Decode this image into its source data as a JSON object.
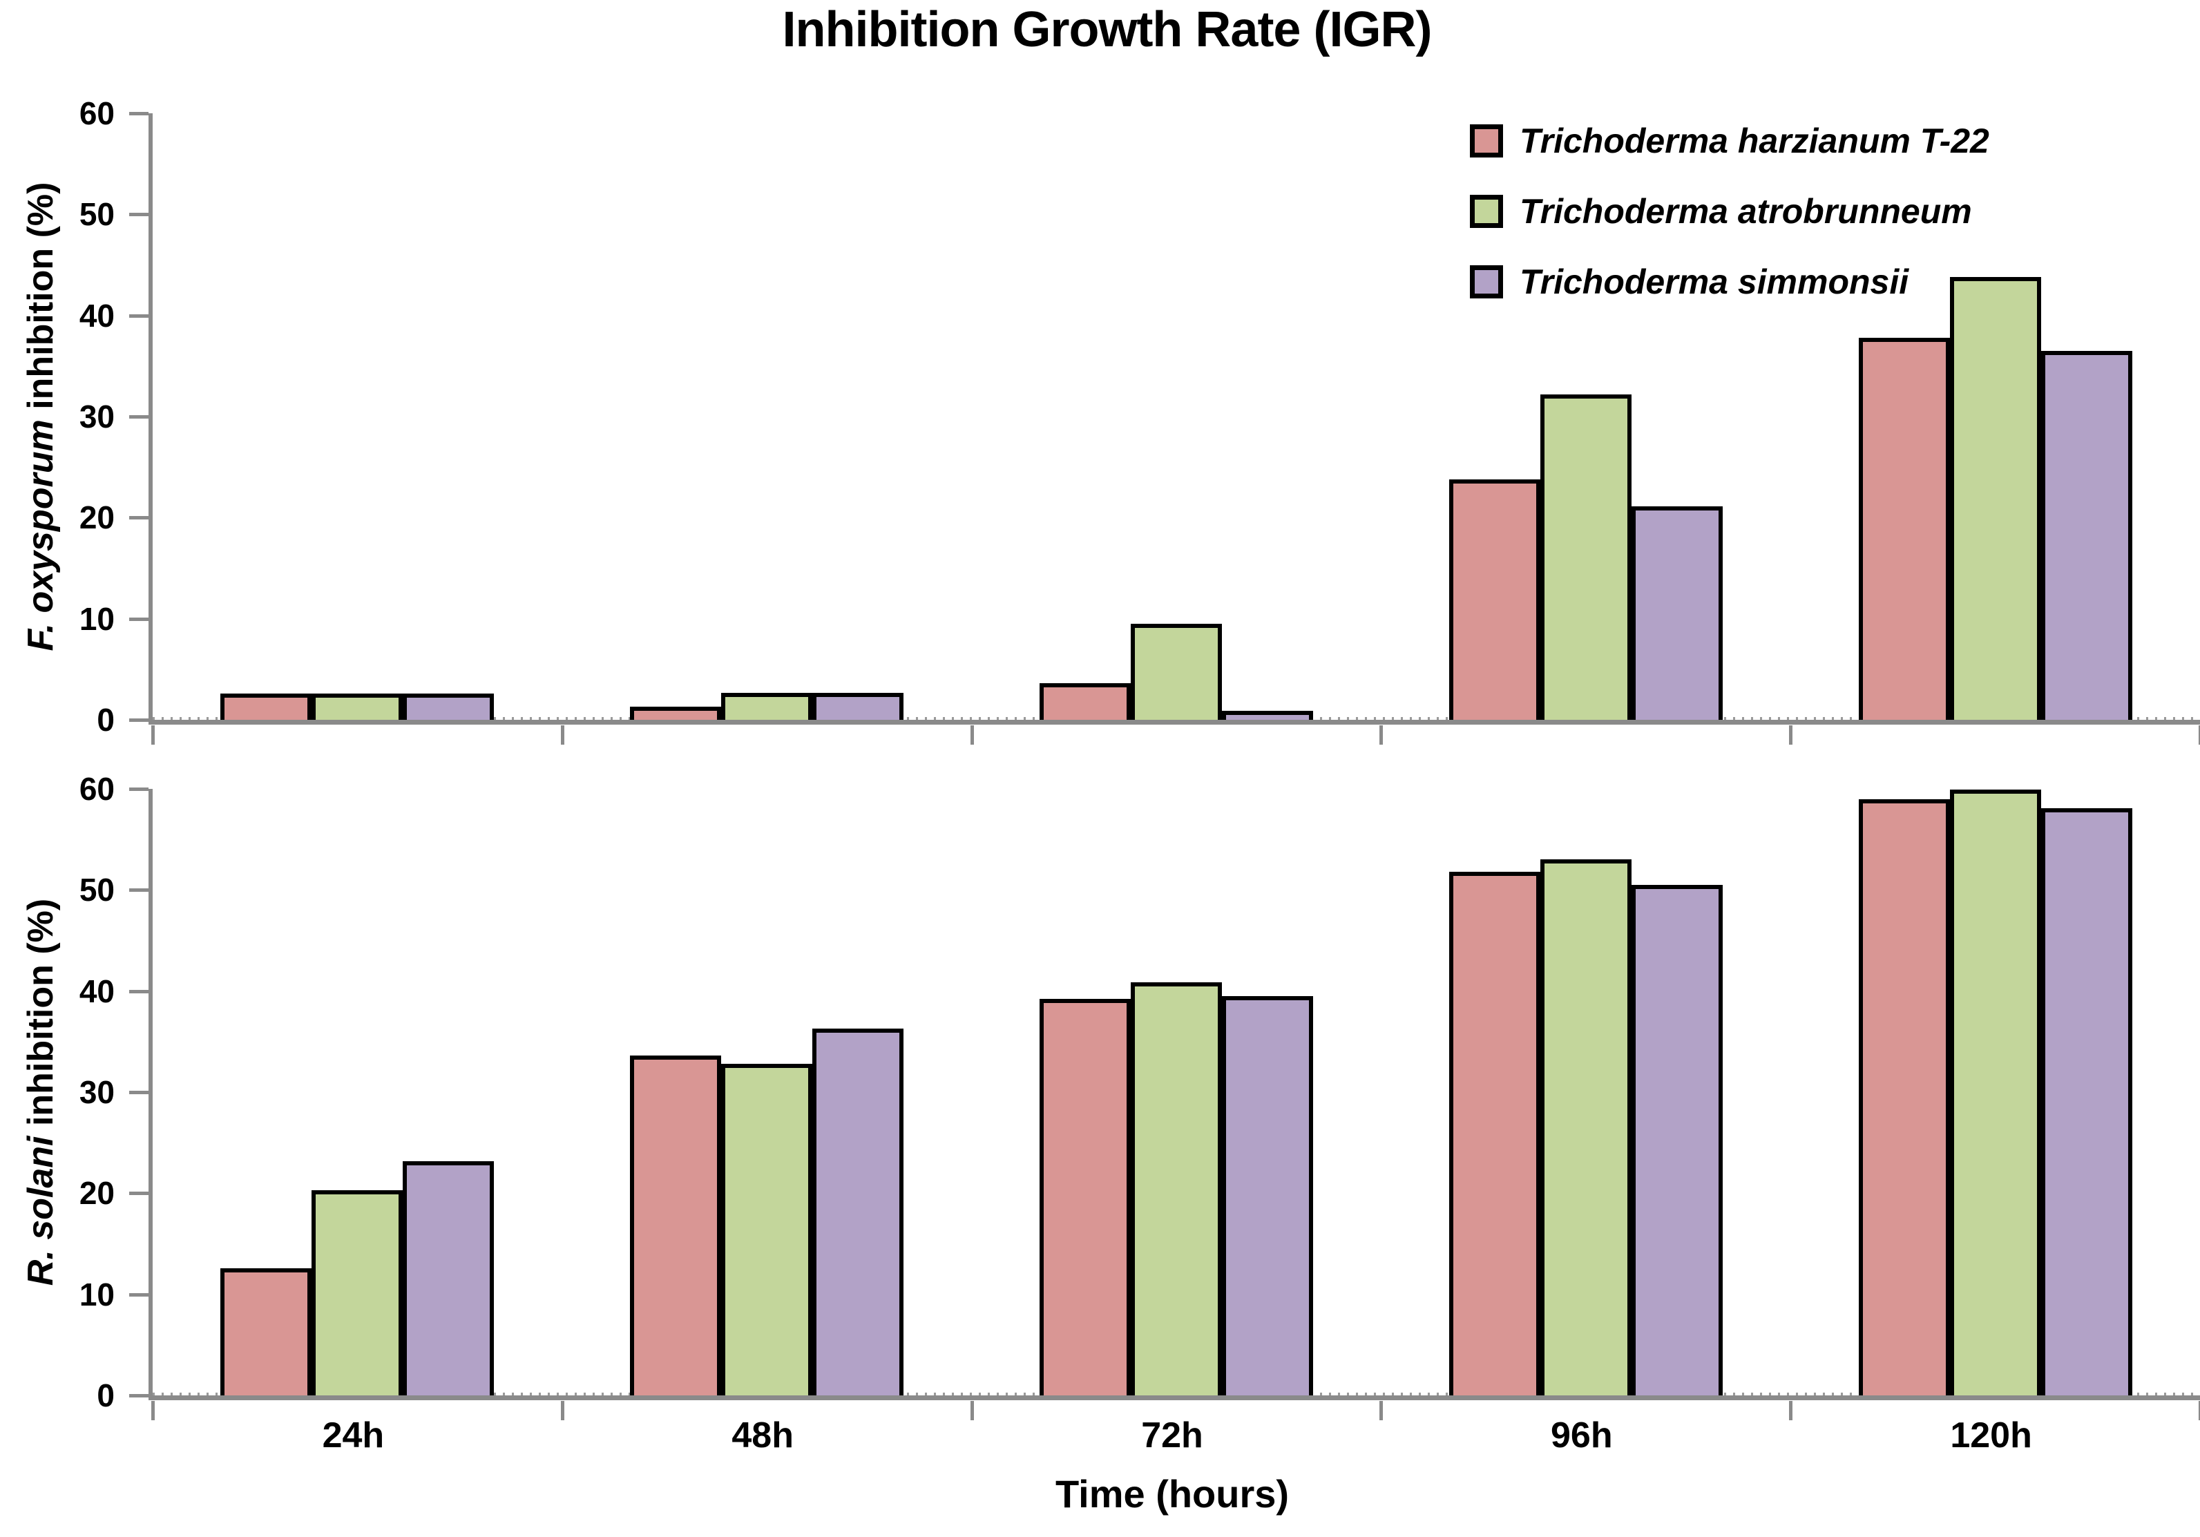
{
  "title": "Inhibition Growth Rate (IGR)",
  "x_axis": {
    "title": "Time (hours)",
    "categories": [
      "24h",
      "48h",
      "72h",
      "96h",
      "120h"
    ]
  },
  "legend": {
    "position": "top-right-inside",
    "items": [
      {
        "label": "Trichoderma harzianum T-22",
        "color": "#D99694"
      },
      {
        "label": "Trichoderma atrobrunneum",
        "color": "#C3D69B"
      },
      {
        "label": "Trichoderma simmonsii",
        "color": "#B2A2C7"
      }
    ]
  },
  "styles": {
    "series_pink": "#D99694",
    "series_green": "#C3D69B",
    "series_purple": "#B2A2C7",
    "bar_border": "#000000",
    "axis_color": "#8A8A8A",
    "text_color": "#000000",
    "background": "#FFFFFF"
  },
  "chart_data": [
    {
      "type": "bar",
      "panel": "top",
      "ylabel_italic": "F. oxysporum",
      "ylabel_rest": " inhibition (%)",
      "ylim": [
        0,
        60
      ],
      "yticks": [
        0,
        10,
        20,
        30,
        40,
        50,
        60
      ],
      "grid": false,
      "categories": [
        "24h",
        "48h",
        "72h",
        "96h",
        "120h"
      ],
      "series": [
        {
          "name": "Trichoderma harzianum T-22",
          "color": "#D99694",
          "values": [
            2.6,
            1.3,
            3.6,
            23.8,
            37.8
          ]
        },
        {
          "name": "Trichoderma atrobrunneum",
          "color": "#C3D69B",
          "values": [
            2.6,
            2.7,
            9.5,
            32.2,
            43.8
          ]
        },
        {
          "name": "Trichoderma simmonsii",
          "color": "#B2A2C7",
          "values": [
            2.6,
            2.7,
            0.9,
            21.1,
            36.5
          ]
        }
      ]
    },
    {
      "type": "bar",
      "panel": "bottom",
      "ylabel_italic": "R. solani",
      "ylabel_rest": " inhibition (%)",
      "ylim": [
        0,
        60
      ],
      "yticks": [
        0,
        10,
        20,
        30,
        40,
        50,
        60
      ],
      "grid": false,
      "categories": [
        "24h",
        "48h",
        "72h",
        "96h",
        "120h"
      ],
      "series": [
        {
          "name": "Trichoderma harzianum T-22",
          "color": "#D99694",
          "values": [
            12.6,
            33.6,
            39.2,
            51.8,
            59.0
          ]
        },
        {
          "name": "Trichoderma atrobrunneum",
          "color": "#C3D69B",
          "values": [
            20.3,
            32.8,
            40.9,
            53.0,
            59.9
          ]
        },
        {
          "name": "Trichoderma simmonsii",
          "color": "#B2A2C7",
          "values": [
            23.2,
            36.3,
            39.5,
            50.5,
            58.1
          ]
        }
      ]
    }
  ]
}
